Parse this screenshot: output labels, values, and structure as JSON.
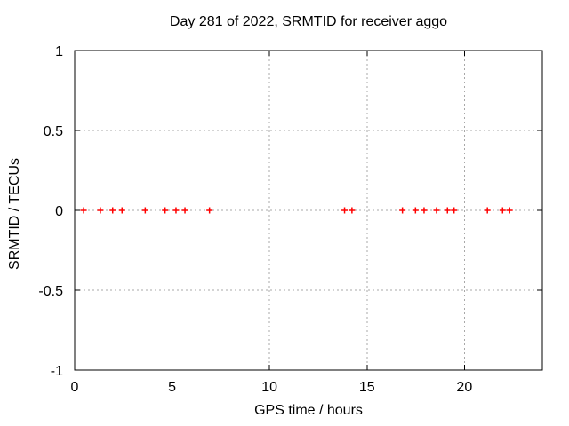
{
  "chart_data": {
    "type": "scatter",
    "title": "Day 281 of 2022, SRMTID for receiver aggo",
    "xlabel": "GPS time / hours",
    "ylabel": "SRMTID / TECUs",
    "xlim": [
      0,
      24
    ],
    "ylim": [
      -1,
      1
    ],
    "xticks": [
      {
        "value": 0,
        "label": "0"
      },
      {
        "value": 5,
        "label": "5"
      },
      {
        "value": 10,
        "label": "10"
      },
      {
        "value": 15,
        "label": "15"
      },
      {
        "value": 20,
        "label": "20"
      }
    ],
    "yticks": [
      {
        "value": 1,
        "label": "1"
      },
      {
        "value": 0.5,
        "label": "0.5"
      },
      {
        "value": 0,
        "label": "0"
      },
      {
        "value": -0.5,
        "label": "-0.5"
      },
      {
        "value": -1,
        "label": "-1"
      }
    ],
    "grid": true,
    "legend": "none",
    "marker": "plus",
    "colors": {
      "marker": "#ff0000",
      "grid": "#a8a8a8",
      "axis": "#000000",
      "background": "#ffffff"
    },
    "series": [
      {
        "name": "SRMTID",
        "x": [
          0.46,
          1.32,
          1.95,
          2.43,
          3.62,
          4.64,
          5.2,
          5.66,
          6.92,
          13.85,
          14.23,
          16.82,
          17.49,
          17.93,
          18.57,
          19.13,
          19.47,
          21.18,
          21.96,
          22.32
        ],
        "y": [
          0,
          0,
          0,
          0,
          0,
          0,
          0,
          0,
          0,
          0,
          0,
          0,
          0,
          0,
          0,
          0,
          0,
          0,
          0,
          0
        ]
      }
    ]
  }
}
